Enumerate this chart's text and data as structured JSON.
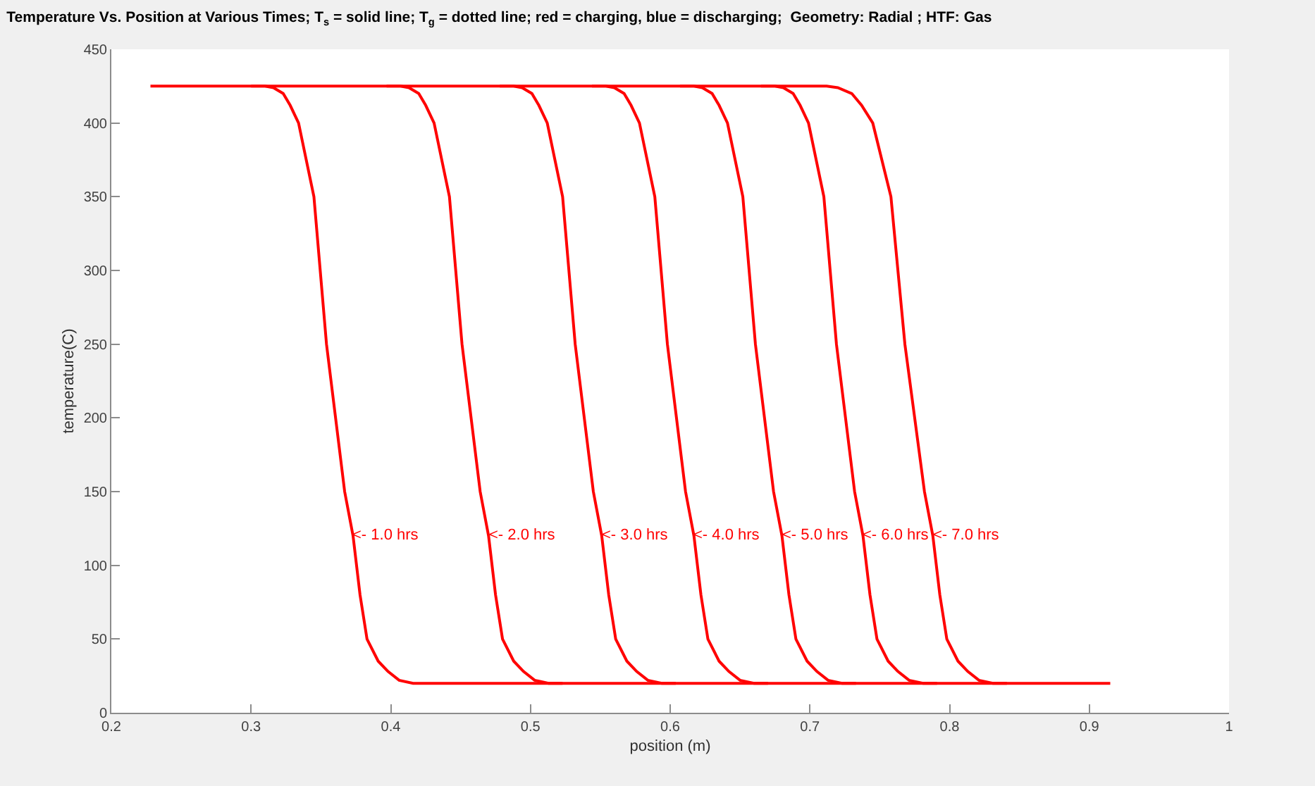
{
  "chart_data": {
    "type": "line",
    "title": "Temperature Vs. Position at Various Times; T$_{s}$ = solid line; T$_{g}$ = dotted line; red = charging, blue = discharging;  Geometry: Radial ; HTF: Gas",
    "xlabel": "position (m)",
    "ylabel": "temperature(C)",
    "xlim": [
      0.2,
      1
    ],
    "xticks": [
      0.2,
      0.3,
      0.4,
      0.5,
      0.6,
      0.7,
      0.8,
      0.9,
      1
    ],
    "ylim": [
      0,
      450
    ],
    "yticks": [
      0,
      50,
      100,
      150,
      200,
      250,
      300,
      350,
      400,
      450
    ],
    "marker": "none",
    "line_style": "solid",
    "series": [
      {
        "color": "#ff0000",
        "x": [
          0.3,
          0.31,
          0.316,
          0.323,
          0.328,
          0.334,
          0.345,
          0.354,
          0.367,
          0.373,
          0.378,
          0.383,
          0.391,
          0.398,
          0.406,
          0.416,
          0.915
        ],
        "values": [
          425,
          425,
          424,
          420,
          412,
          400,
          350,
          250,
          150,
          120,
          80,
          50,
          35,
          28,
          22,
          20,
          20
        ]
      },
      {
        "color": "#ff0000",
        "x": [
          0.397,
          0.407,
          0.413,
          0.42,
          0.425,
          0.431,
          0.442,
          0.451,
          0.464,
          0.47,
          0.475,
          0.48,
          0.488,
          0.495,
          0.503,
          0.513,
          0.523
        ],
        "values": [
          425,
          425,
          424,
          420,
          412,
          400,
          350,
          250,
          150,
          120,
          80,
          50,
          35,
          28,
          22,
          20,
          20
        ]
      },
      {
        "color": "#ff0000",
        "x": [
          0.478,
          0.488,
          0.494,
          0.501,
          0.506,
          0.512,
          0.523,
          0.532,
          0.545,
          0.551,
          0.556,
          0.561,
          0.569,
          0.576,
          0.584,
          0.594,
          0.604
        ],
        "values": [
          425,
          425,
          424,
          420,
          412,
          400,
          350,
          250,
          150,
          120,
          80,
          50,
          35,
          28,
          22,
          20,
          20
        ]
      },
      {
        "color": "#ff0000",
        "x": [
          0.544,
          0.554,
          0.56,
          0.567,
          0.572,
          0.578,
          0.589,
          0.598,
          0.611,
          0.617,
          0.622,
          0.627,
          0.635,
          0.642,
          0.65,
          0.66,
          0.67
        ],
        "values": [
          425,
          425,
          424,
          420,
          412,
          400,
          350,
          250,
          150,
          120,
          80,
          50,
          35,
          28,
          22,
          20,
          20
        ]
      },
      {
        "color": "#ff0000",
        "x": [
          0.607,
          0.617,
          0.623,
          0.63,
          0.635,
          0.641,
          0.652,
          0.661,
          0.674,
          0.68,
          0.685,
          0.69,
          0.698,
          0.705,
          0.713,
          0.723,
          0.733
        ],
        "values": [
          425,
          425,
          424,
          420,
          412,
          400,
          350,
          250,
          150,
          120,
          80,
          50,
          35,
          28,
          22,
          20,
          20
        ]
      },
      {
        "color": "#ff0000",
        "x": [
          0.665,
          0.675,
          0.681,
          0.688,
          0.693,
          0.699,
          0.71,
          0.719,
          0.732,
          0.738,
          0.743,
          0.748,
          0.756,
          0.763,
          0.771,
          0.781,
          0.791
        ],
        "values": [
          425,
          425,
          424,
          420,
          412,
          400,
          350,
          250,
          150,
          120,
          80,
          50,
          35,
          28,
          22,
          20,
          20
        ]
      },
      {
        "color": "#ff0000",
        "x": [
          0.228,
          0.712,
          0.72,
          0.73,
          0.737,
          0.745,
          0.758,
          0.768,
          0.782,
          0.788,
          0.793,
          0.798,
          0.806,
          0.813,
          0.821,
          0.831,
          0.841
        ],
        "values": [
          425,
          425,
          424,
          420,
          412,
          400,
          350,
          250,
          150,
          120,
          80,
          50,
          35,
          28,
          22,
          20,
          20
        ]
      }
    ],
    "annotations": [
      {
        "text": "<- 1.0 hrs",
        "x": 0.373,
        "y": 120
      },
      {
        "text": "<- 2.0 hrs",
        "x": 0.47,
        "y": 120
      },
      {
        "text": "<- 3.0 hrs",
        "x": 0.551,
        "y": 120
      },
      {
        "text": "<- 4.0 hrs",
        "x": 0.617,
        "y": 120
      },
      {
        "text": "<- 5.0 hrs",
        "x": 0.68,
        "y": 120
      },
      {
        "text": "<- 6.0 hrs",
        "x": 0.738,
        "y": 120
      },
      {
        "text": "<- 7.0 hrs",
        "x": 0.788,
        "y": 120
      }
    ]
  }
}
